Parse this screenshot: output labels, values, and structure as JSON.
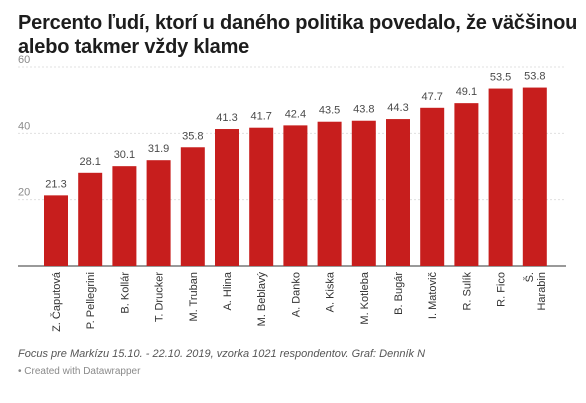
{
  "chart_data": {
    "type": "bar",
    "title": "Percento ľudí, ktorí u daného politika povedalo, že väčšinou alebo takmer vždy klame",
    "categories": [
      "Z. Čaputová",
      "P. Pellegrini",
      "B. Kollár",
      "T. Drucker",
      "M. Truban",
      "A. Hlina",
      "M. Beblavý",
      "A. Danko",
      "A. Kiska",
      "M. Kotleba",
      "B. Bugár",
      "I. Matovič",
      "R. Sulík",
      "R. Fico",
      "Š. Harabin"
    ],
    "values": [
      21.3,
      28.1,
      30.1,
      31.9,
      35.8,
      41.3,
      41.7,
      42.4,
      43.5,
      43.8,
      44.3,
      47.7,
      49.1,
      53.5,
      53.8
    ],
    "value_labels": [
      "21.3",
      "28.1",
      "30.1",
      "31.9",
      "35.8",
      "41.3",
      "41.7",
      "42.4",
      "43.5",
      "43.8",
      "44.3",
      "47.7",
      "49.1",
      "53.5",
      "53.8"
    ],
    "yticks": [
      "20",
      "40",
      "60"
    ],
    "ylim": [
      0,
      60
    ],
    "grid": true,
    "bar_color": "#c71e1d",
    "footnote": "Focus pre Markízu 15.10. - 22.10. 2019, vzorka 1021 respondentov. Graf: Denník N",
    "credit": "• Created with Datawrapper"
  }
}
